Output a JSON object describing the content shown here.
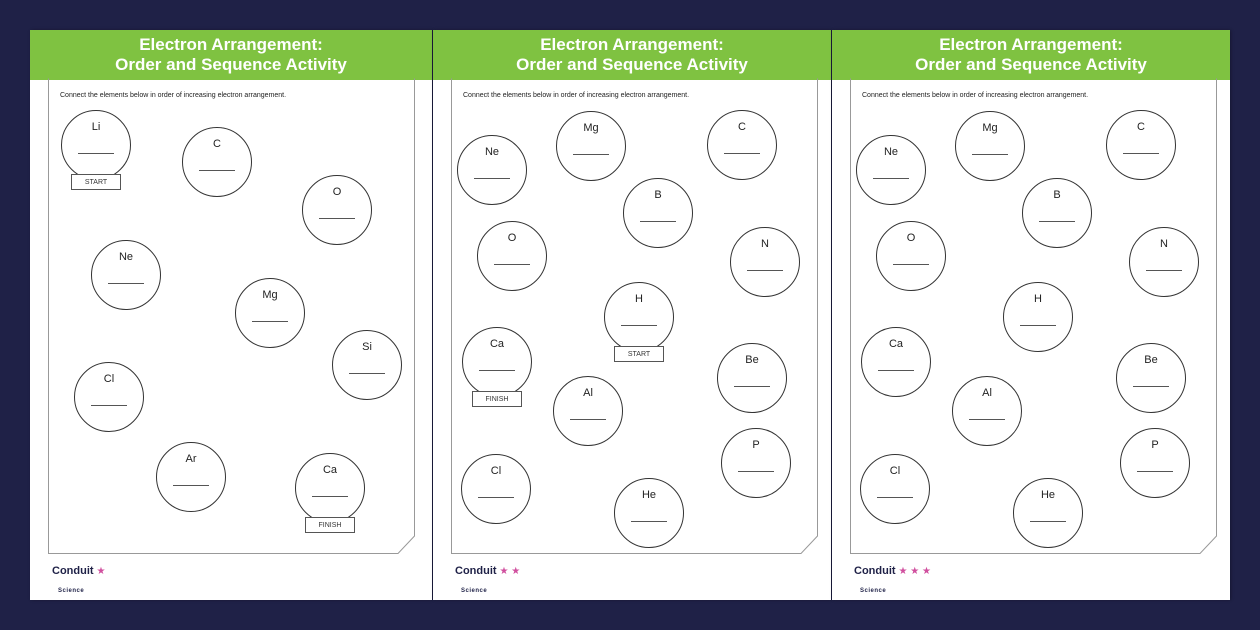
{
  "title_line1": "Electron Arrangement:",
  "title_line2": "Order and Sequence Activity",
  "instruction": "Connect the elements below in order of increasing electron arrangement.",
  "start_label": "START",
  "finish_label": "FINISH",
  "brand": "Conduit",
  "brand_sub": "Science",
  "colors": {
    "header": "#7fc241",
    "background": "#1f2147",
    "star": "#d04f9e"
  },
  "pages": [
    {
      "stars": "★",
      "elements": [
        "Li",
        "C",
        "O",
        "Ne",
        "Mg",
        "Si",
        "Cl",
        "Ar",
        "Ca"
      ],
      "start": "Li",
      "finish": "Ca"
    },
    {
      "stars": "★ ★",
      "elements": [
        "Ne",
        "Mg",
        "C",
        "B",
        "O",
        "N",
        "H",
        "Ca",
        "Be",
        "Al",
        "P",
        "Cl",
        "He"
      ],
      "start": "H",
      "finish": "Ca"
    },
    {
      "stars": "★ ★ ★",
      "elements": [
        "Ne",
        "Mg",
        "C",
        "B",
        "O",
        "N",
        "H",
        "Ca",
        "Be",
        "Al",
        "P",
        "Cl",
        "He"
      ]
    }
  ]
}
